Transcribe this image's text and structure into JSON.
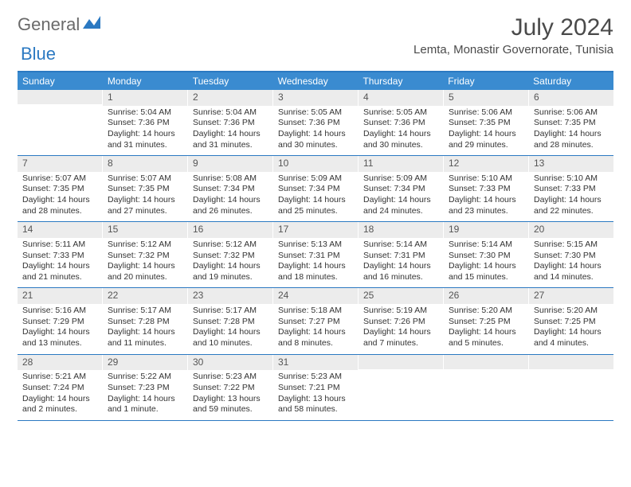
{
  "logo": {
    "part1": "General",
    "part2": "Blue"
  },
  "title": "July 2024",
  "location": "Lemta, Monastir Governorate, Tunisia",
  "weekdays": [
    "Sunday",
    "Monday",
    "Tuesday",
    "Wednesday",
    "Thursday",
    "Friday",
    "Saturday"
  ],
  "colors": {
    "header_bar": "#3a8bd0",
    "border": "#2b79c2",
    "daynum_bg": "#ececec",
    "text": "#333333",
    "logo_gray": "#6a6a6a",
    "logo_blue": "#2b79c2"
  },
  "weeks": [
    [
      {
        "day": "",
        "sunrise": "",
        "sunset": "",
        "daylight": ""
      },
      {
        "day": "1",
        "sunrise": "Sunrise: 5:04 AM",
        "sunset": "Sunset: 7:36 PM",
        "daylight": "Daylight: 14 hours and 31 minutes."
      },
      {
        "day": "2",
        "sunrise": "Sunrise: 5:04 AM",
        "sunset": "Sunset: 7:36 PM",
        "daylight": "Daylight: 14 hours and 31 minutes."
      },
      {
        "day": "3",
        "sunrise": "Sunrise: 5:05 AM",
        "sunset": "Sunset: 7:36 PM",
        "daylight": "Daylight: 14 hours and 30 minutes."
      },
      {
        "day": "4",
        "sunrise": "Sunrise: 5:05 AM",
        "sunset": "Sunset: 7:36 PM",
        "daylight": "Daylight: 14 hours and 30 minutes."
      },
      {
        "day": "5",
        "sunrise": "Sunrise: 5:06 AM",
        "sunset": "Sunset: 7:35 PM",
        "daylight": "Daylight: 14 hours and 29 minutes."
      },
      {
        "day": "6",
        "sunrise": "Sunrise: 5:06 AM",
        "sunset": "Sunset: 7:35 PM",
        "daylight": "Daylight: 14 hours and 28 minutes."
      }
    ],
    [
      {
        "day": "7",
        "sunrise": "Sunrise: 5:07 AM",
        "sunset": "Sunset: 7:35 PM",
        "daylight": "Daylight: 14 hours and 28 minutes."
      },
      {
        "day": "8",
        "sunrise": "Sunrise: 5:07 AM",
        "sunset": "Sunset: 7:35 PM",
        "daylight": "Daylight: 14 hours and 27 minutes."
      },
      {
        "day": "9",
        "sunrise": "Sunrise: 5:08 AM",
        "sunset": "Sunset: 7:34 PM",
        "daylight": "Daylight: 14 hours and 26 minutes."
      },
      {
        "day": "10",
        "sunrise": "Sunrise: 5:09 AM",
        "sunset": "Sunset: 7:34 PM",
        "daylight": "Daylight: 14 hours and 25 minutes."
      },
      {
        "day": "11",
        "sunrise": "Sunrise: 5:09 AM",
        "sunset": "Sunset: 7:34 PM",
        "daylight": "Daylight: 14 hours and 24 minutes."
      },
      {
        "day": "12",
        "sunrise": "Sunrise: 5:10 AM",
        "sunset": "Sunset: 7:33 PM",
        "daylight": "Daylight: 14 hours and 23 minutes."
      },
      {
        "day": "13",
        "sunrise": "Sunrise: 5:10 AM",
        "sunset": "Sunset: 7:33 PM",
        "daylight": "Daylight: 14 hours and 22 minutes."
      }
    ],
    [
      {
        "day": "14",
        "sunrise": "Sunrise: 5:11 AM",
        "sunset": "Sunset: 7:33 PM",
        "daylight": "Daylight: 14 hours and 21 minutes."
      },
      {
        "day": "15",
        "sunrise": "Sunrise: 5:12 AM",
        "sunset": "Sunset: 7:32 PM",
        "daylight": "Daylight: 14 hours and 20 minutes."
      },
      {
        "day": "16",
        "sunrise": "Sunrise: 5:12 AM",
        "sunset": "Sunset: 7:32 PM",
        "daylight": "Daylight: 14 hours and 19 minutes."
      },
      {
        "day": "17",
        "sunrise": "Sunrise: 5:13 AM",
        "sunset": "Sunset: 7:31 PM",
        "daylight": "Daylight: 14 hours and 18 minutes."
      },
      {
        "day": "18",
        "sunrise": "Sunrise: 5:14 AM",
        "sunset": "Sunset: 7:31 PM",
        "daylight": "Daylight: 14 hours and 16 minutes."
      },
      {
        "day": "19",
        "sunrise": "Sunrise: 5:14 AM",
        "sunset": "Sunset: 7:30 PM",
        "daylight": "Daylight: 14 hours and 15 minutes."
      },
      {
        "day": "20",
        "sunrise": "Sunrise: 5:15 AM",
        "sunset": "Sunset: 7:30 PM",
        "daylight": "Daylight: 14 hours and 14 minutes."
      }
    ],
    [
      {
        "day": "21",
        "sunrise": "Sunrise: 5:16 AM",
        "sunset": "Sunset: 7:29 PM",
        "daylight": "Daylight: 14 hours and 13 minutes."
      },
      {
        "day": "22",
        "sunrise": "Sunrise: 5:17 AM",
        "sunset": "Sunset: 7:28 PM",
        "daylight": "Daylight: 14 hours and 11 minutes."
      },
      {
        "day": "23",
        "sunrise": "Sunrise: 5:17 AM",
        "sunset": "Sunset: 7:28 PM",
        "daylight": "Daylight: 14 hours and 10 minutes."
      },
      {
        "day": "24",
        "sunrise": "Sunrise: 5:18 AM",
        "sunset": "Sunset: 7:27 PM",
        "daylight": "Daylight: 14 hours and 8 minutes."
      },
      {
        "day": "25",
        "sunrise": "Sunrise: 5:19 AM",
        "sunset": "Sunset: 7:26 PM",
        "daylight": "Daylight: 14 hours and 7 minutes."
      },
      {
        "day": "26",
        "sunrise": "Sunrise: 5:20 AM",
        "sunset": "Sunset: 7:25 PM",
        "daylight": "Daylight: 14 hours and 5 minutes."
      },
      {
        "day": "27",
        "sunrise": "Sunrise: 5:20 AM",
        "sunset": "Sunset: 7:25 PM",
        "daylight": "Daylight: 14 hours and 4 minutes."
      }
    ],
    [
      {
        "day": "28",
        "sunrise": "Sunrise: 5:21 AM",
        "sunset": "Sunset: 7:24 PM",
        "daylight": "Daylight: 14 hours and 2 minutes."
      },
      {
        "day": "29",
        "sunrise": "Sunrise: 5:22 AM",
        "sunset": "Sunset: 7:23 PM",
        "daylight": "Daylight: 14 hours and 1 minute."
      },
      {
        "day": "30",
        "sunrise": "Sunrise: 5:23 AM",
        "sunset": "Sunset: 7:22 PM",
        "daylight": "Daylight: 13 hours and 59 minutes."
      },
      {
        "day": "31",
        "sunrise": "Sunrise: 5:23 AM",
        "sunset": "Sunset: 7:21 PM",
        "daylight": "Daylight: 13 hours and 58 minutes."
      },
      {
        "day": "",
        "sunrise": "",
        "sunset": "",
        "daylight": ""
      },
      {
        "day": "",
        "sunrise": "",
        "sunset": "",
        "daylight": ""
      },
      {
        "day": "",
        "sunrise": "",
        "sunset": "",
        "daylight": ""
      }
    ]
  ]
}
